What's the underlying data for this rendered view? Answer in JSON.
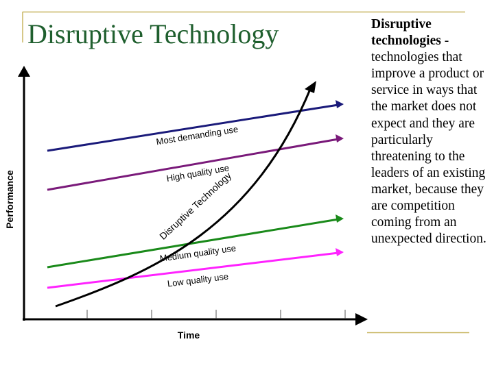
{
  "slide": {
    "title": "Disruptive Technology",
    "definition_term": "Disruptive technologies",
    "definition_separator": " - ",
    "definition_body": "technologies that improve a product or service in ways that the market does not expect and they are particularly threatening to the leaders of an existing market, because they are competition coming from an unexpected direction."
  },
  "diagram": {
    "x_axis_label": "Time",
    "y_axis_label": "Performance",
    "curve_label": "Disruptive Technology",
    "lines": [
      {
        "label": "Most demanding use",
        "color": "#1a1a7a"
      },
      {
        "label": "High quality use",
        "color": "#7a1a7a"
      },
      {
        "label": "Medium quality use",
        "color": "#1a8a1a"
      },
      {
        "label": "Low quality use",
        "color": "#ff22ff"
      }
    ]
  },
  "colors": {
    "title": "#1f5f2e",
    "frame": "#c8b560",
    "axis": "#000000"
  }
}
